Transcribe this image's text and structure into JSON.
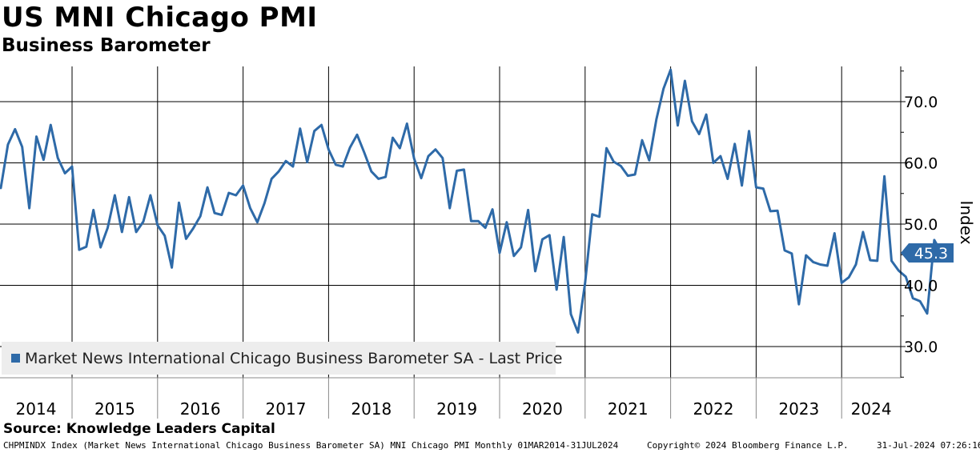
{
  "title": "US MNI Chicago PMI",
  "subtitle": "Business Barometer",
  "source": "Source: Knowledge Leaders Capital",
  "footer": {
    "description": "CHPMINDX Index (Market News International Chicago Business Barometer SA) MNI Chicago PMI  Monthly 01MAR2014-31JUL2024",
    "copyright": "Copyright© 2024 Bloomberg Finance L.P.",
    "date": "31-Jul-2024 07:26:16"
  },
  "chart_data": {
    "type": "line",
    "title": "US MNI Chicago PMI",
    "subtitle": "Business Barometer",
    "ylabel": "Index",
    "ylim": [
      25,
      76
    ],
    "yticks": [
      30,
      40,
      50,
      60,
      70
    ],
    "ytick_labels": [
      "30.0",
      "40.0",
      "50.0",
      "60.0",
      "70.0"
    ],
    "x_range": [
      "2014-03",
      "2024-07"
    ],
    "x_year_labels": [
      "2014",
      "2015",
      "2016",
      "2017",
      "2018",
      "2019",
      "2020",
      "2021",
      "2022",
      "2023",
      "2024"
    ],
    "grid": true,
    "legend_position": "bottom-left",
    "line_color": "#2e6aa8",
    "last_value_label": "45.3",
    "series": [
      {
        "name": "Market News International Chicago Business Barometer SA - Last Price",
        "start": "2014-03",
        "values": [
          55.9,
          63.0,
          65.5,
          62.6,
          52.6,
          64.3,
          60.5,
          66.2,
          60.8,
          58.3,
          59.4,
          45.8,
          46.3,
          52.3,
          46.2,
          49.4,
          54.7,
          48.7,
          54.4,
          48.7,
          50.4,
          54.7,
          49.8,
          48.1,
          42.9,
          53.5,
          47.6,
          49.3,
          51.3,
          56.0,
          51.8,
          51.5,
          55.1,
          54.7,
          56.3,
          52.6,
          50.3,
          53.4,
          57.4,
          58.6,
          60.3,
          59.4,
          65.6,
          60.1,
          65.2,
          66.2,
          62.2,
          59.7,
          59.4,
          62.5,
          64.6,
          61.7,
          58.6,
          57.4,
          57.7,
          64.1,
          62.4,
          66.4,
          60.7,
          57.5,
          61.1,
          62.2,
          60.8,
          52.6,
          58.7,
          58.9,
          50.5,
          50.5,
          49.4,
          52.4,
          45.3,
          50.3,
          44.8,
          46.2,
          52.3,
          42.3,
          47.5,
          48.2,
          39.3,
          47.9,
          35.3,
          32.3,
          40.4,
          51.6,
          51.2,
          62.4,
          60.2,
          59.5,
          57.9,
          58.1,
          63.7,
          60.4,
          67.1,
          72.1,
          75.2,
          66.1,
          73.4,
          66.8,
          64.7,
          67.9,
          60.0,
          61.1,
          57.4,
          63.1,
          56.3,
          65.2,
          56.0,
          55.8,
          52.1,
          52.2,
          45.7,
          45.2,
          36.9,
          44.9,
          43.8,
          43.4,
          43.2,
          48.5,
          40.4,
          41.3,
          43.4,
          48.7,
          44.1,
          44.0,
          57.8,
          44.0,
          42.4,
          41.4,
          37.9,
          37.4,
          35.4,
          47.4,
          45.3
        ]
      }
    ]
  }
}
